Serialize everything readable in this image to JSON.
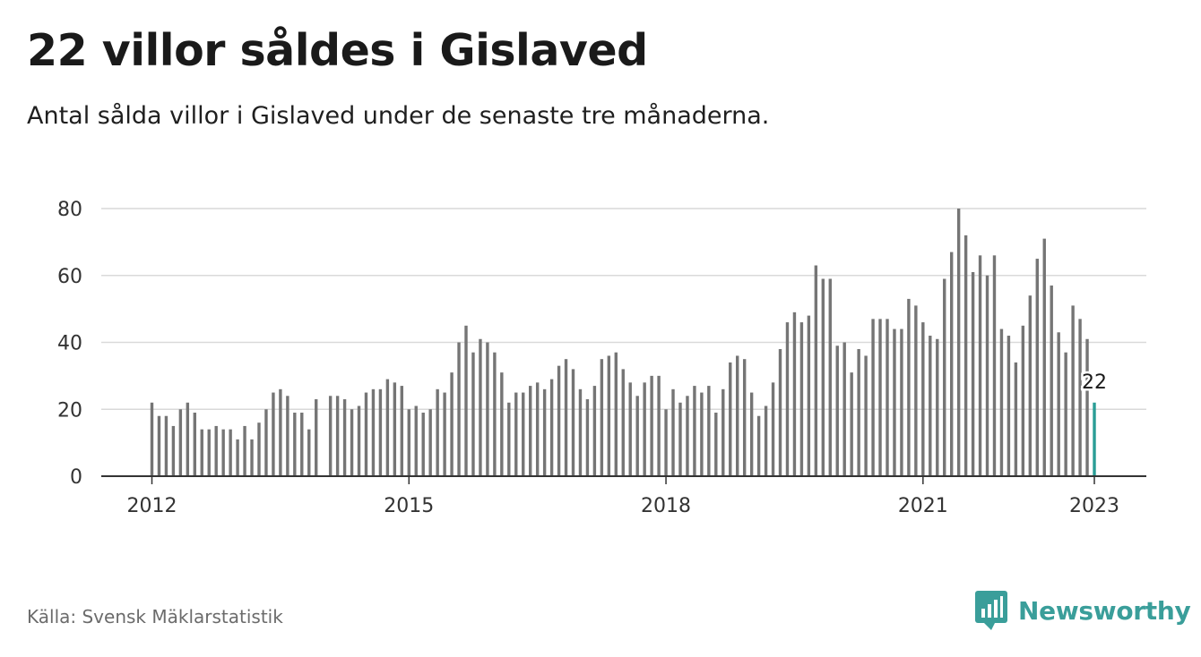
{
  "title": "22 villor såldes i Gislaved",
  "subtitle": "Antal sålda villor i Gislaved under de senaste tre månaderna.",
  "source": "Källa: Svensk Mäklarstatistik",
  "brand": {
    "name": "Newsworthy",
    "color": "#3a9e9a",
    "icon": "newsworthy-logo-icon"
  },
  "colors": {
    "bar": "#757575",
    "highlight": "#2a9d96",
    "grid": "#d9d9d9",
    "axis": "#333333"
  },
  "chart_data": {
    "type": "bar",
    "x_start": "2012-01",
    "x_end": "2023-01",
    "x_ticks": [
      "2012",
      "2015",
      "2018",
      "2021",
      "2023"
    ],
    "ylim": [
      0,
      80
    ],
    "y_ticks": [
      0,
      20,
      40,
      60,
      80
    ],
    "grid": true,
    "values": [
      22,
      18,
      18,
      15,
      20,
      22,
      19,
      14,
      14,
      15,
      14,
      14,
      11,
      15,
      11,
      16,
      20,
      25,
      26,
      24,
      19,
      19,
      14,
      23,
      0,
      24,
      24,
      23,
      20,
      21,
      25,
      26,
      26,
      29,
      28,
      27,
      20,
      21,
      19,
      20,
      26,
      25,
      31,
      40,
      45,
      37,
      41,
      40,
      37,
      31,
      22,
      25,
      25,
      27,
      28,
      26,
      29,
      33,
      35,
      32,
      26,
      23,
      27,
      35,
      36,
      37,
      32,
      28,
      24,
      28,
      30,
      30,
      20,
      26,
      22,
      24,
      27,
      25,
      27,
      19,
      26,
      34,
      36,
      35,
      25,
      18,
      21,
      28,
      38,
      46,
      49,
      46,
      48,
      63,
      59,
      59,
      39,
      40,
      31,
      38,
      36,
      47,
      47,
      47,
      44,
      44,
      53,
      51,
      46,
      42,
      41,
      59,
      67,
      80,
      72,
      61,
      66,
      60,
      66,
      44,
      42,
      34,
      45,
      54,
      65,
      71,
      57,
      43,
      37,
      51,
      47,
      41,
      22
    ],
    "highlight_last": true,
    "last_value_label": "22"
  }
}
